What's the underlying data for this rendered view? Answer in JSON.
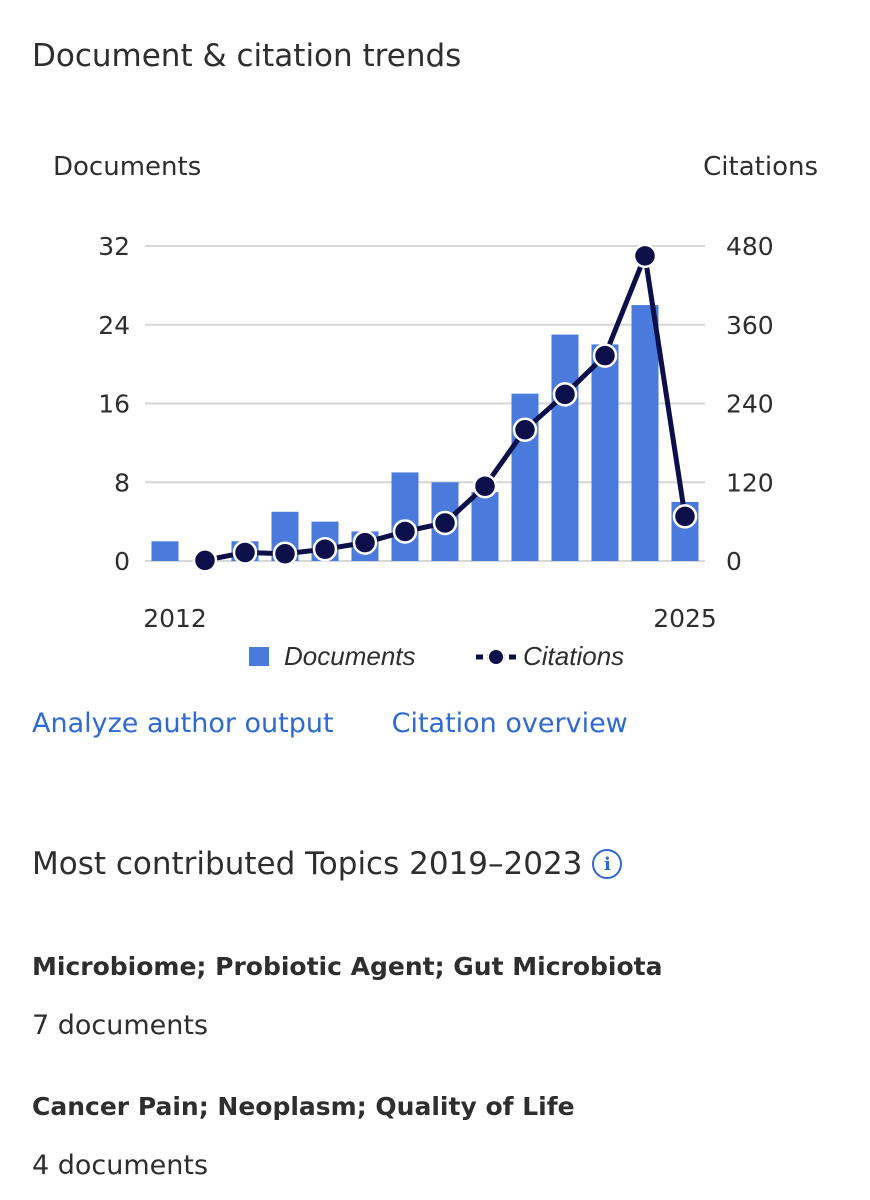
{
  "header": {
    "title": "Document & citation trends"
  },
  "links": {
    "analyze": "Analyze author output",
    "citation": "Citation overview"
  },
  "topics": {
    "title": "Most contributed Topics 2019–2023",
    "info_icon": "info-icon",
    "items": [
      {
        "name": "Microbiome; Probiotic Agent; Gut Microbiota",
        "count": "7 documents"
      },
      {
        "name": "Cancer Pain; Neoplasm; Quality of Life",
        "count": "4 documents"
      }
    ]
  },
  "colors": {
    "bar": "#4a7bdc",
    "line": "#0d0f4a",
    "grid": "#d6d6d6",
    "link": "#2e6ad1",
    "text": "#2e2e2e"
  },
  "chart_data": {
    "type": "bar",
    "title": "Document & citation trends",
    "left_axis_label": "Documents",
    "right_axis_label": "Citations",
    "x": [
      2012,
      2013,
      2014,
      2015,
      2016,
      2017,
      2018,
      2019,
      2020,
      2021,
      2022,
      2023,
      2024,
      2025
    ],
    "x_tick_labels": [
      "2012",
      "2025"
    ],
    "left_ticks": [
      0,
      8,
      16,
      24,
      32
    ],
    "right_ticks": [
      0,
      120,
      240,
      360,
      480
    ],
    "ylim_left": [
      0,
      32
    ],
    "ylim_right": [
      0,
      480
    ],
    "grid": true,
    "legend_position": "bottom",
    "series": [
      {
        "name": "Documents",
        "kind": "bar",
        "axis": "left",
        "values": [
          2,
          0,
          2,
          5,
          4,
          3,
          9,
          8,
          7,
          17,
          23,
          22,
          26,
          6
        ]
      },
      {
        "name": "Citations",
        "kind": "line",
        "axis": "right",
        "values": [
          null,
          1,
          13,
          11,
          18,
          28,
          45,
          58,
          114,
          200,
          254,
          313,
          465,
          68
        ]
      }
    ]
  }
}
